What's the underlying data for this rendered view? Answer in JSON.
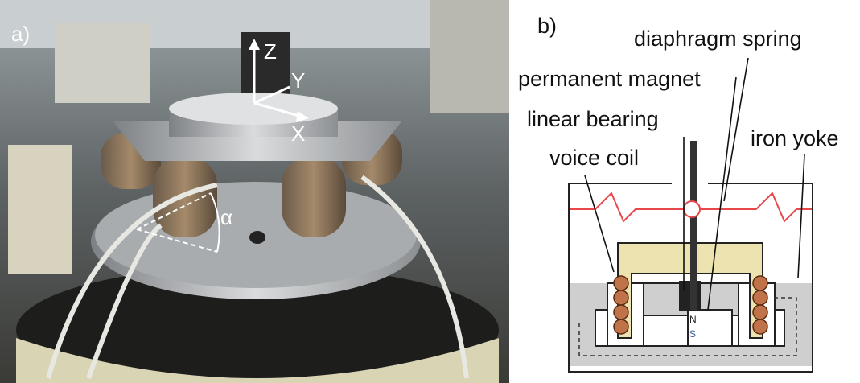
{
  "panel_a": {
    "label": "a)",
    "axes": [
      "Z",
      "Y",
      "X"
    ],
    "angle": "α"
  },
  "panel_b": {
    "label": "b)",
    "callouts": [
      "diaphragm spring",
      "permanent magnet",
      "linear bearing",
      "voice coil",
      "iron yoke"
    ],
    "poles": [
      "N",
      "S"
    ]
  }
}
